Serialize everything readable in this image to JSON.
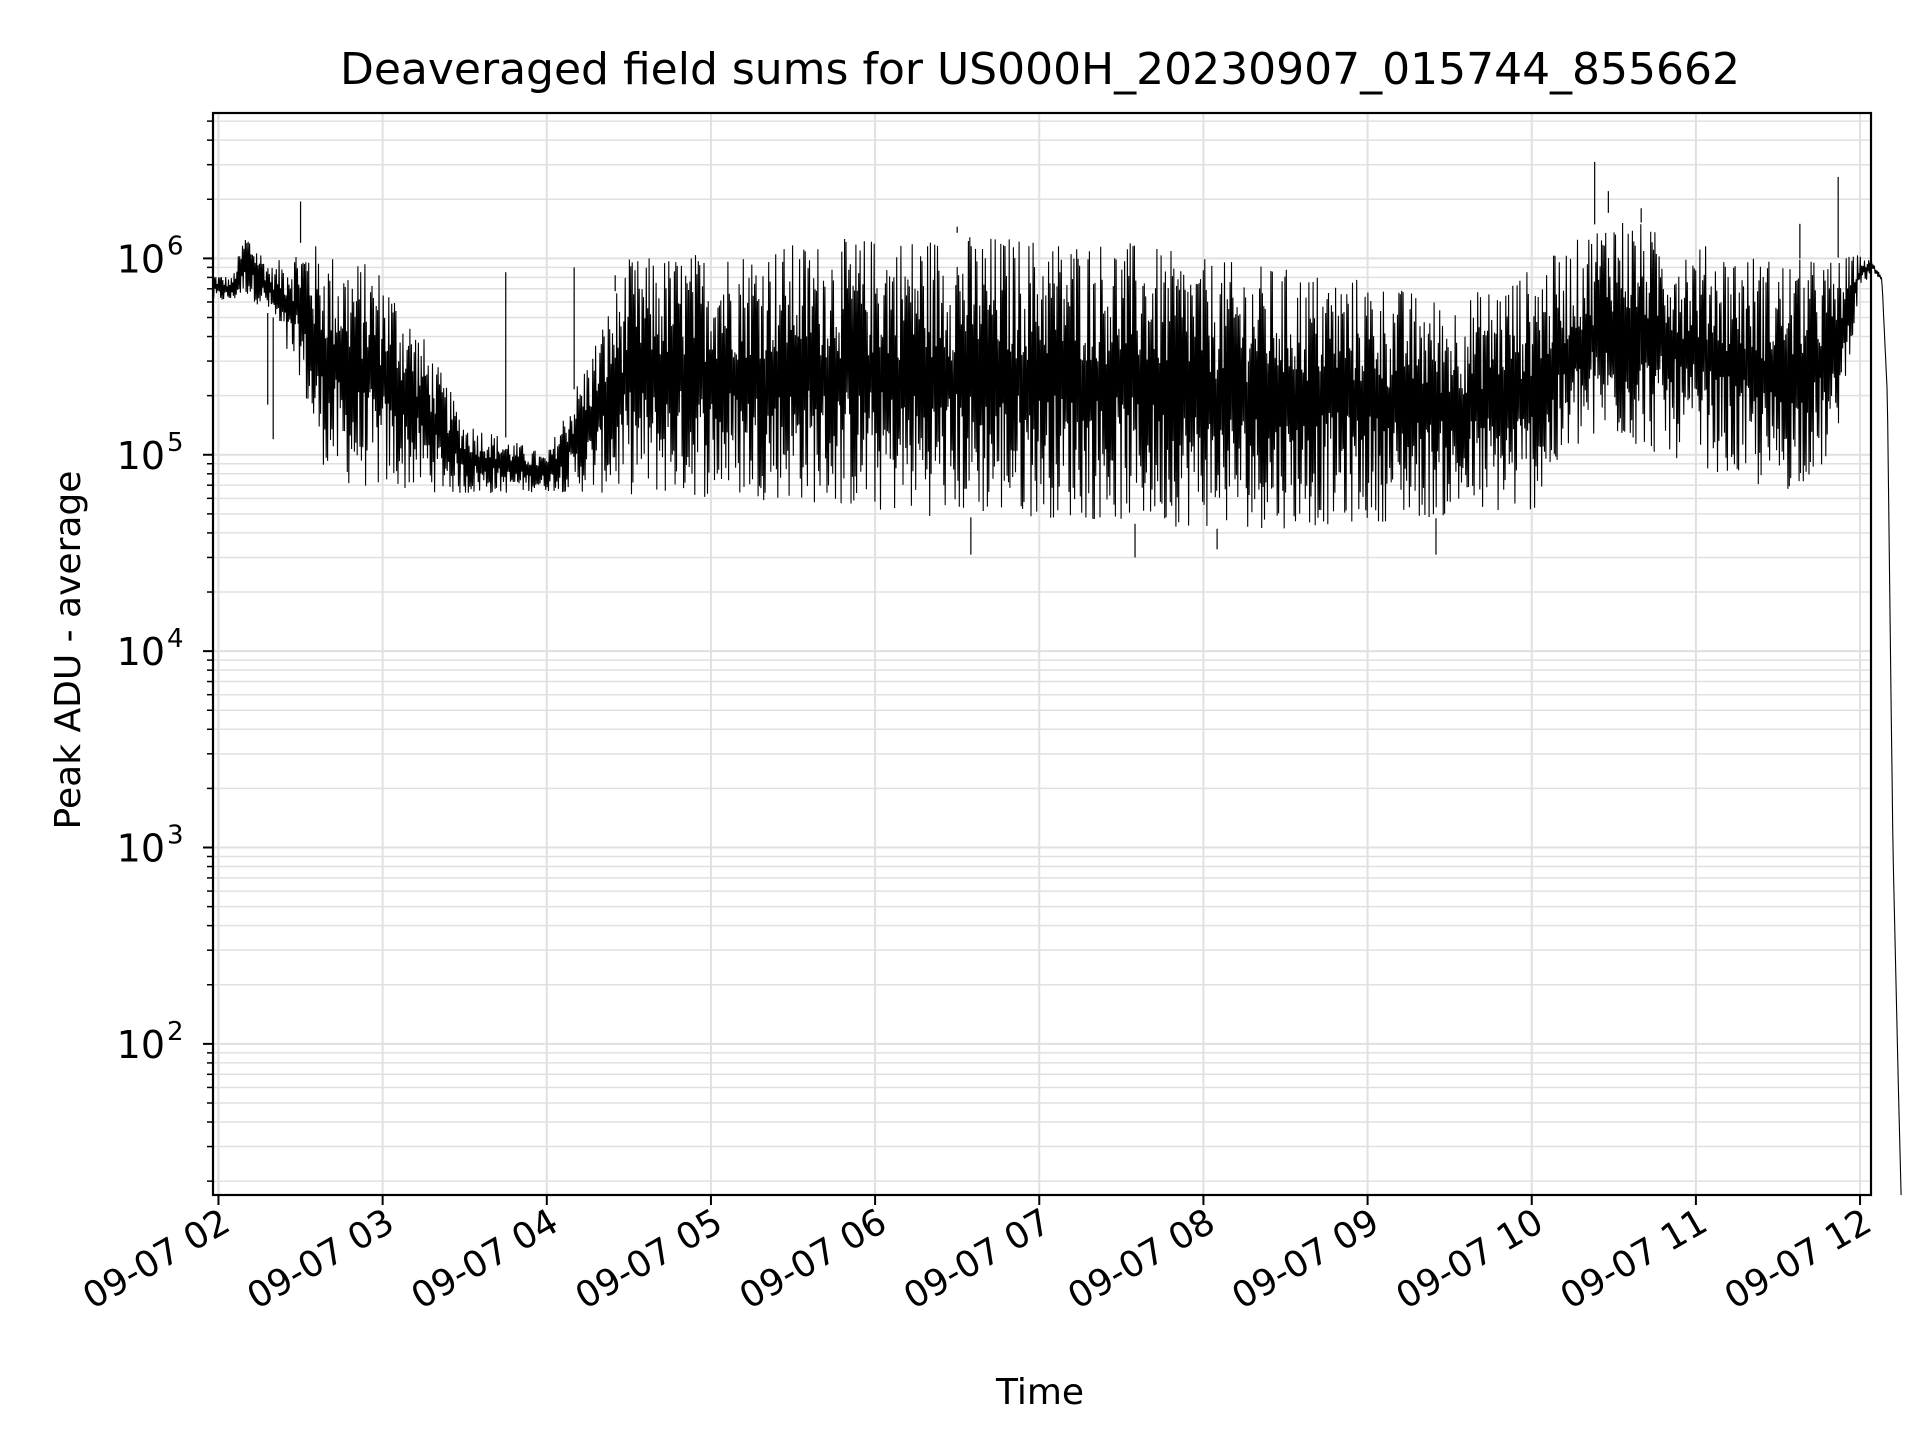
{
  "chart_data": {
    "type": "line",
    "title": "Deaveraged field sums for US000H_20230907_015744_855662",
    "xlabel": "Time",
    "ylabel": "Peak ADU - average",
    "x_scale": "time",
    "y_scale": "log",
    "xlim": [
      "2023-09-07 01:58",
      "2023-09-07 12:04"
    ],
    "ylim": [
      17,
      5500000
    ],
    "x_ticks": [
      {
        "value": "2023-09-07 02:00",
        "label": "09-07 02"
      },
      {
        "value": "2023-09-07 03:00",
        "label": "09-07 03"
      },
      {
        "value": "2023-09-07 04:00",
        "label": "09-07 04"
      },
      {
        "value": "2023-09-07 05:00",
        "label": "09-07 05"
      },
      {
        "value": "2023-09-07 06:00",
        "label": "09-07 06"
      },
      {
        "value": "2023-09-07 07:00",
        "label": "09-07 07"
      },
      {
        "value": "2023-09-07 08:00",
        "label": "09-07 08"
      },
      {
        "value": "2023-09-07 09:00",
        "label": "09-07 09"
      },
      {
        "value": "2023-09-07 10:00",
        "label": "09-07 10"
      },
      {
        "value": "2023-09-07 11:00",
        "label": "09-07 11"
      },
      {
        "value": "2023-09-07 12:00",
        "label": "09-07 12"
      }
    ],
    "y_ticks": [
      {
        "value": 100,
        "base": "10",
        "exp": "2"
      },
      {
        "value": 1000,
        "base": "10",
        "exp": "3"
      },
      {
        "value": 10000,
        "base": "10",
        "exp": "4"
      },
      {
        "value": 100000,
        "base": "10",
        "exp": "5"
      },
      {
        "value": 1000000,
        "base": "10",
        "exp": "6"
      }
    ],
    "grid": true,
    "line_color": "#000000",
    "grid_color": "#e0e0e0",
    "series": [
      {
        "x": [
          "2023-09-07 01:58",
          "2023-09-07 02:05",
          "2023-09-07 02:10",
          "2023-09-07 02:20",
          "2023-09-07 02:25",
          "2023-09-07 02:30",
          "2023-09-07 02:33",
          "2023-09-07 02:35",
          "2023-09-07 02:38",
          "2023-09-07 02:40",
          "2023-09-07 02:45",
          "2023-09-07 03:00",
          "2023-09-07 03:15",
          "2023-09-07 03:30",
          "2023-09-07 04:00",
          "2023-09-07 04:30",
          "2023-09-07 05:00",
          "2023-09-07 05:30",
          "2023-09-07 06:00",
          "2023-09-07 06:30",
          "2023-09-07 07:00",
          "2023-09-07 07:30",
          "2023-09-07 08:00",
          "2023-09-07 08:30",
          "2023-09-07 09:00",
          "2023-09-07 09:30",
          "2023-09-07 10:00",
          "2023-09-07 10:15",
          "2023-09-07 10:30",
          "2023-09-07 10:45",
          "2023-09-07 11:00",
          "2023-09-07 11:30",
          "2023-09-07 11:50",
          "2023-09-07 12:00",
          "2023-09-07 12:05",
          "2023-09-07 12:08",
          "2023-09-07 12:10",
          "2023-09-07 12:12",
          "2023-09-07 12:14",
          "2023-09-07 12:15"
        ],
        "y_low": [
          600000,
          600000,
          650000,
          500000,
          300000,
          250000,
          150000,
          110000,
          90000,
          80000,
          70000,
          65000,
          65000,
          62000,
          65000,
          62000,
          60000,
          58000,
          50000,
          48000,
          48000,
          45000,
          42000,
          42000,
          45000,
          48000,
          50000,
          100000,
          120000,
          100000,
          90000,
          60000,
          90000,
          700000,
          850000,
          750000,
          200000,
          1000,
          60,
          17
        ],
        "y_high": [
          850000,
          800000,
          1400000,
          900000,
          1100000,
          1200000,
          1300000,
          1200000,
          1150000,
          1100000,
          1050000,
          900000,
          400000,
          150000,
          100000,
          1000000,
          1100000,
          1200000,
          1300000,
          1350000,
          1300000,
          1250000,
          1000000,
          900000,
          800000,
          600000,
          900000,
          1200000,
          1800000,
          1400000,
          1200000,
          1000000,
          1000000,
          1050000,
          950000,
          800000,
          200000,
          1000,
          60,
          17
        ],
        "spikes": [
          {
            "x": "2023-09-07 02:30",
            "y": 1950000
          },
          {
            "x": "2023-09-07 02:18",
            "y": 180000
          },
          {
            "x": "2023-09-07 02:20",
            "y": 120000
          },
          {
            "x": "2023-09-07 03:45",
            "y": 850000
          },
          {
            "x": "2023-09-07 04:10",
            "y": 900000
          },
          {
            "x": "2023-09-07 04:25",
            "y": 820000
          },
          {
            "x": "2023-09-07 06:30",
            "y": 1450000
          },
          {
            "x": "2023-09-07 10:23",
            "y": 3100000
          },
          {
            "x": "2023-09-07 10:28",
            "y": 2200000
          },
          {
            "x": "2023-09-07 10:40",
            "y": 1800000
          },
          {
            "x": "2023-09-07 11:38",
            "y": 1500000
          },
          {
            "x": "2023-09-07 11:52",
            "y": 2600000
          },
          {
            "x": "2023-09-07 06:35",
            "y": 31000
          },
          {
            "x": "2023-09-07 07:35",
            "y": 30000
          },
          {
            "x": "2023-09-07 08:05",
            "y": 33000
          },
          {
            "x": "2023-09-07 09:25",
            "y": 31000
          }
        ]
      }
    ]
  }
}
